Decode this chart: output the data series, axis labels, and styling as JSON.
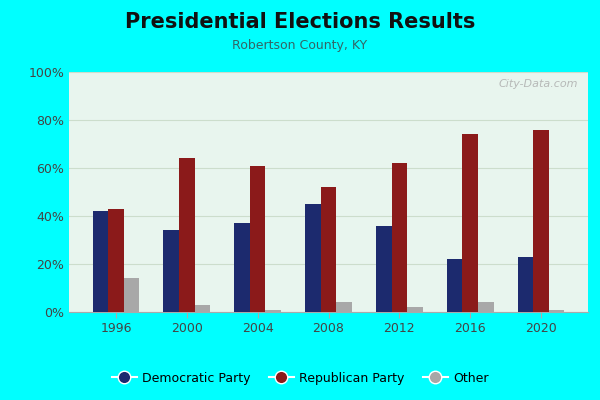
{
  "title": "Presidential Elections Results",
  "subtitle": "Robertson County, KY",
  "years": [
    1996,
    2000,
    2004,
    2008,
    2012,
    2016,
    2020
  ],
  "democratic": [
    42,
    34,
    37,
    45,
    36,
    22,
    23
  ],
  "republican": [
    43,
    64,
    61,
    52,
    62,
    74,
    76
  ],
  "other": [
    14,
    3,
    1,
    4,
    2,
    4,
    1
  ],
  "dem_color": "#1C2A6E",
  "rep_color": "#8B1A1A",
  "other_color": "#A8A8A8",
  "bg_outer": "#00FFFF",
  "bg_inner_top": "#E8F5EE",
  "bg_inner_bottom": "#F5FBF7",
  "grid_color": "#CCDDCC",
  "ylim": [
    0,
    100
  ],
  "yticks": [
    0,
    20,
    40,
    60,
    80,
    100
  ],
  "bar_width": 0.22,
  "title_fontsize": 15,
  "subtitle_fontsize": 9,
  "watermark": "City-Data.com"
}
